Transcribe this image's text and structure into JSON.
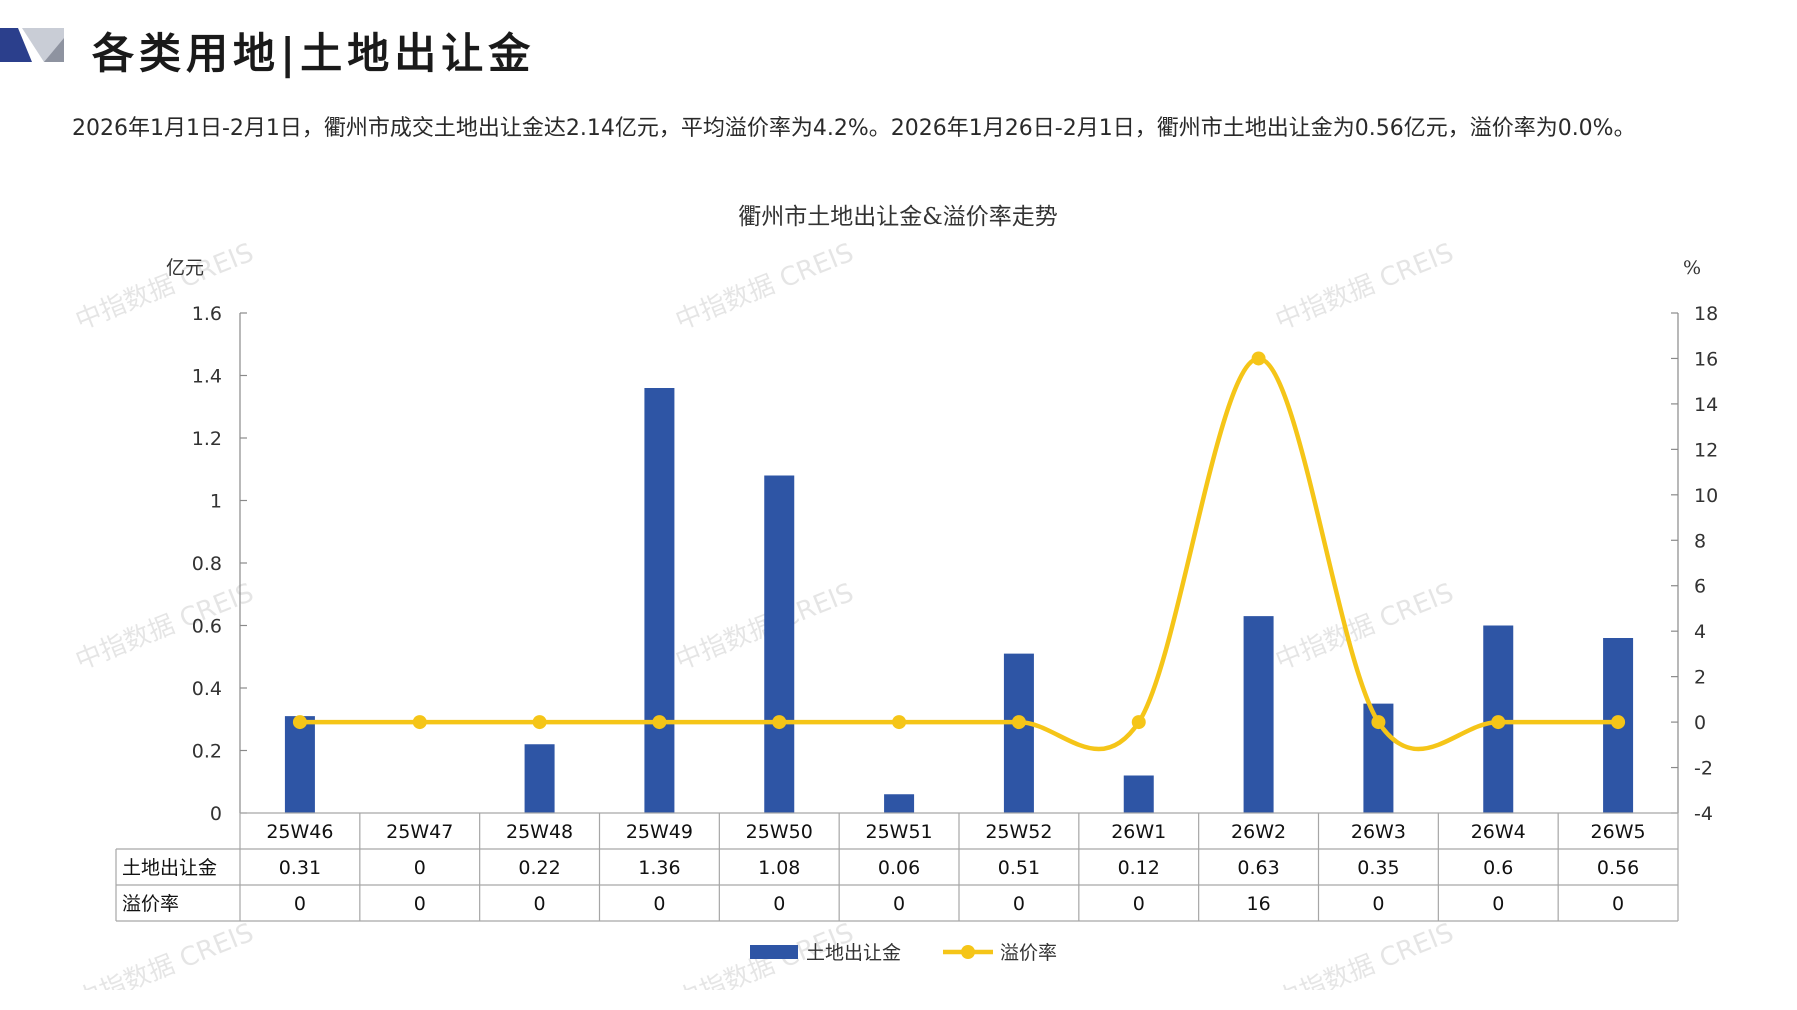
{
  "header": {
    "title": "各类用地|土地出让金",
    "summary": "2026年1月1日-2月1日，衢州市成交土地出让金达2.14亿元，平均溢价率为4.2%。2026年1月26日-2月1日，衢州市土地出让金为0.56亿元，溢价率为0.0%。"
  },
  "colors": {
    "bar": "#2E55A5",
    "line": "#F5C518",
    "logo_dark": "#2B3F8C",
    "logo_light": "#C9CDD6"
  },
  "watermark": "中指数据 CREIS",
  "chart_data": {
    "type": "bar+line",
    "title": "衢州市土地出让金&溢价率走势",
    "categories": [
      "25W46",
      "25W47",
      "25W48",
      "25W49",
      "25W50",
      "25W51",
      "25W52",
      "26W1",
      "26W2",
      "26W3",
      "26W4",
      "26W5"
    ],
    "series": [
      {
        "name": "土地出让金",
        "type": "bar",
        "axis": "left",
        "values": [
          0.31,
          0,
          0.22,
          1.36,
          1.08,
          0.06,
          0.51,
          0.12,
          0.63,
          0.35,
          0.6,
          0.56
        ],
        "labels": [
          "0.31",
          "0",
          "0.22",
          "1.36",
          "1.08",
          "0.06",
          "0.51",
          "0.12",
          "0.63",
          "0.35",
          "0.6",
          "0.56"
        ]
      },
      {
        "name": "溢价率",
        "type": "line",
        "axis": "right",
        "smooth": true,
        "values": [
          0,
          0,
          0,
          0,
          0,
          0,
          0,
          0,
          16,
          0,
          0,
          0
        ],
        "labels": [
          "0",
          "0",
          "0",
          "0",
          "0",
          "0",
          "0",
          "0",
          "16",
          "0",
          "0",
          "0"
        ]
      }
    ],
    "left_axis": {
      "unit": "亿元",
      "ylim": [
        0,
        1.6
      ],
      "ticks": [
        "0",
        "0.2",
        "0.4",
        "0.6",
        "0.8",
        "1",
        "1.2",
        "1.4",
        "1.6"
      ]
    },
    "right_axis": {
      "unit": "%",
      "ylim": [
        -4,
        18
      ],
      "ticks": [
        "-4",
        "-2",
        "0",
        "2",
        "4",
        "6",
        "8",
        "10",
        "12",
        "14",
        "16",
        "18"
      ]
    },
    "data_table": true,
    "legend_position": "bottom-center",
    "grid": false
  }
}
